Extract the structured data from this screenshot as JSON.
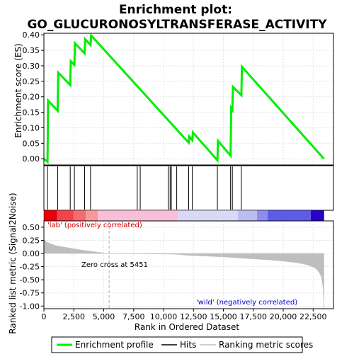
{
  "chart_data": {
    "type": "line",
    "title": "Enrichment plot:",
    "subtitle": "GO_GLUCURONOSYLTRANSFERASE_ACTIVITY",
    "es_panel": {
      "ylabel": "Enrichment score (ES)",
      "ylim": [
        -0.02,
        0.405
      ],
      "yticks": [
        "0.00",
        "0.05",
        "0.10",
        "0.15",
        "0.20",
        "0.25",
        "0.30",
        "0.35",
        "0.40"
      ],
      "grid": true,
      "series": [
        {
          "name": "Enrichment profile",
          "color": "#00ee00",
          "x": [
            0,
            300,
            350,
            1150,
            1200,
            2200,
            2250,
            2550,
            2600,
            3400,
            3450,
            3900,
            3950,
            12100,
            12150,
            12400,
            12450,
            14500,
            14550,
            15600,
            15650,
            15750,
            15800,
            16500,
            16550,
            23400
          ],
          "y": [
            0.0,
            -0.01,
            0.188,
            0.155,
            0.278,
            0.238,
            0.315,
            0.303,
            0.373,
            0.34,
            0.386,
            0.367,
            0.398,
            0.052,
            0.072,
            0.06,
            0.085,
            -0.005,
            0.058,
            0.01,
            0.163,
            0.157,
            0.232,
            0.205,
            0.297,
            0.0
          ]
        }
      ]
    },
    "hits": [
      300,
      1150,
      2200,
      2550,
      3400,
      3900,
      7800,
      8050,
      10400,
      10550,
      10650,
      11100,
      12100,
      12400,
      14500,
      15600,
      15750,
      16500
    ],
    "metric_panel": {
      "ylabel": "Ranked list metric (Signal2Noise)",
      "ylim": [
        -1.05,
        0.62
      ],
      "yticks": [
        "0.50",
        "0.25",
        "0.00",
        "-0.25",
        "-0.50",
        "-0.75",
        "-1.00"
      ],
      "fill_color": "#bebebe",
      "x": [
        0,
        200,
        500,
        1000,
        1500,
        2000,
        2500,
        3000,
        3500,
        4000,
        4500,
        5000,
        5451,
        6000,
        8000,
        10000,
        11000,
        12000,
        13000,
        14000,
        15000,
        16000,
        17000,
        18000,
        19000,
        20000,
        21000,
        21500,
        22000,
        22500,
        22800,
        23000,
        23200,
        23350,
        23400
      ],
      "y": [
        0.28,
        0.22,
        0.19,
        0.15,
        0.13,
        0.11,
        0.09,
        0.07,
        0.055,
        0.04,
        0.025,
        0.01,
        0.0,
        -0.003,
        -0.006,
        -0.01,
        -0.015,
        -0.035,
        -0.045,
        -0.055,
        -0.065,
        -0.08,
        -0.095,
        -0.11,
        -0.125,
        -0.145,
        -0.17,
        -0.19,
        -0.215,
        -0.26,
        -0.3,
        -0.36,
        -0.45,
        -0.68,
        -1.05
      ],
      "annotations": [
        "'lab' (positively correlated)",
        "Zero cross at 5451",
        "'wild' (negatively correlated)"
      ],
      "zero_cross": 5451
    },
    "xaxis": {
      "xlabel": "Rank in Ordered Dataset",
      "xlim": [
        0,
        24200
      ],
      "xticks": [
        0,
        2500,
        5000,
        7500,
        10000,
        12500,
        15000,
        17500,
        20000,
        22500
      ],
      "xtick_labels": [
        "0",
        "2,500",
        "5,000",
        "7,500",
        "10,000",
        "12,500",
        "15,000",
        "17,500",
        "20,000",
        "22,500"
      ],
      "n_genes": 23400
    },
    "colorbar": {
      "segments": [
        {
          "from": 0,
          "to": 1100,
          "color": "#e8000b"
        },
        {
          "from": 1100,
          "to": 2500,
          "color": "#f2444c"
        },
        {
          "from": 2500,
          "to": 3500,
          "color": "#f56a6f"
        },
        {
          "from": 3500,
          "to": 4500,
          "color": "#f8979a"
        },
        {
          "from": 4500,
          "to": 11200,
          "color": "#f8bfd8"
        },
        {
          "from": 11200,
          "to": 16200,
          "color": "#d9d9f5"
        },
        {
          "from": 16200,
          "to": 17800,
          "color": "#bcbcf2"
        },
        {
          "from": 17800,
          "to": 18700,
          "color": "#8d8df0"
        },
        {
          "from": 18700,
          "to": 22300,
          "color": "#5c5ce8"
        },
        {
          "from": 22300,
          "to": 23400,
          "color": "#2a00cc"
        }
      ]
    },
    "legend": {
      "placement": "bottom",
      "items": [
        {
          "label": "Enrichment profile",
          "color": "#00ee00"
        },
        {
          "label": "Hits",
          "color": "#000000"
        },
        {
          "label": "Ranking metric scores",
          "color": "#bebebe"
        }
      ]
    }
  }
}
